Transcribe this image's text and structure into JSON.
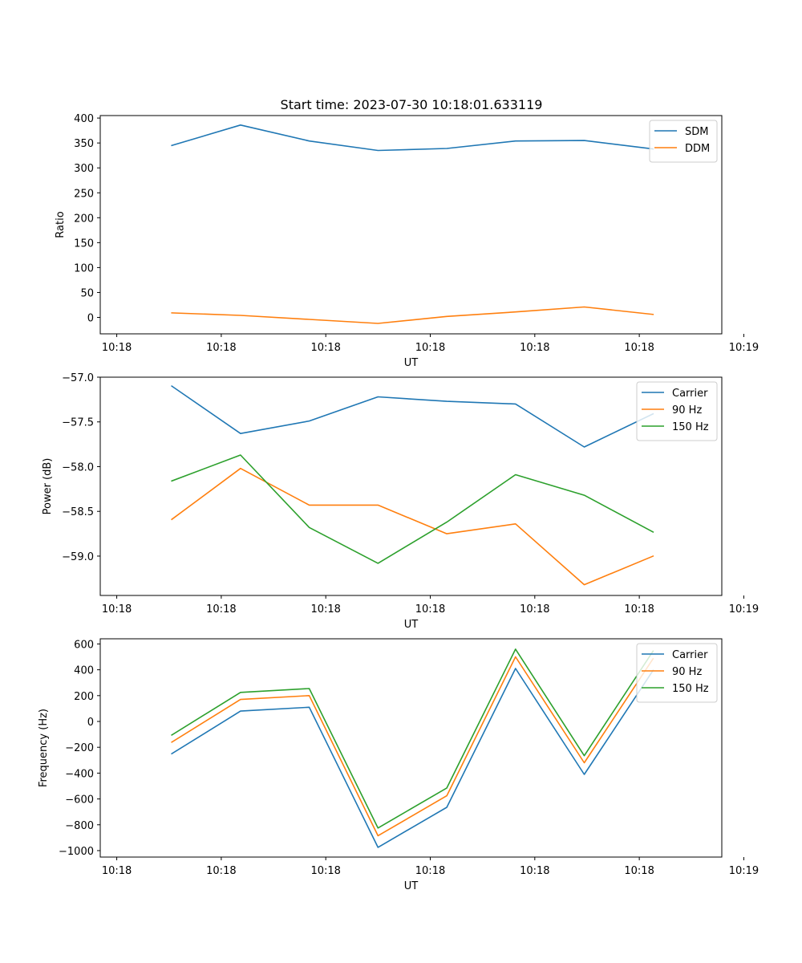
{
  "figure": {
    "title": "Start time: 2023-07-30 10:18:01.633119"
  },
  "colors": {
    "blue": "#1f77b4",
    "orange": "#ff7f0e",
    "green": "#2ca02c"
  },
  "chart_data": [
    {
      "type": "line",
      "name": "ratio",
      "title": "Start time: 2023-07-30 10:18:01.633119",
      "xlabel": "UT",
      "ylabel": "Ratio",
      "xlim": [
        -0.13,
        1.0
      ],
      "ylim": [
        -33,
        405
      ],
      "x": [
        0,
        0.125,
        0.25,
        0.375,
        0.5,
        0.625,
        0.75,
        0.875
      ],
      "xticks": [
        -0.1,
        0.09,
        0.28,
        0.47,
        0.66,
        0.85,
        1.04
      ],
      "xticklabels": [
        "10:18",
        "10:18",
        "10:18",
        "10:18",
        "10:18",
        "10:18",
        "10:19"
      ],
      "yticks": [
        0,
        50,
        100,
        150,
        200,
        250,
        300,
        350,
        400
      ],
      "yticklabels": [
        "0",
        "50",
        "100",
        "150",
        "200",
        "250",
        "300",
        "350",
        "400"
      ],
      "legend": "top-right",
      "series": [
        {
          "name": "SDM",
          "color": "#1f77b4",
          "values": [
            345,
            386,
            354,
            335,
            339,
            354,
            355,
            338
          ]
        },
        {
          "name": "DDM",
          "color": "#ff7f0e",
          "values": [
            9,
            4,
            -4,
            -12,
            2,
            11,
            21,
            6
          ]
        }
      ]
    },
    {
      "type": "line",
      "name": "power",
      "xlabel": "UT",
      "ylabel": "Power (dB)",
      "xlim": [
        -0.13,
        1.0
      ],
      "ylim": [
        -59.44,
        -57.0
      ],
      "x": [
        0,
        0.125,
        0.25,
        0.375,
        0.5,
        0.625,
        0.75,
        0.875
      ],
      "xticks": [
        -0.1,
        0.09,
        0.28,
        0.47,
        0.66,
        0.85,
        1.04
      ],
      "xticklabels": [
        "10:18",
        "10:18",
        "10:18",
        "10:18",
        "10:18",
        "10:18",
        "10:19"
      ],
      "yticks": [
        -59.0,
        -58.5,
        -58.0,
        -57.5,
        -57.0
      ],
      "yticklabels": [
        "−59.0",
        "−58.5",
        "−58.0",
        "−57.5",
        "−57.0"
      ],
      "legend": "top-right",
      "series": [
        {
          "name": "Carrier",
          "color": "#1f77b4",
          "values": [
            -57.1,
            -57.63,
            -57.49,
            -57.22,
            -57.27,
            -57.3,
            -57.78,
            -57.41
          ]
        },
        {
          "name": "90 Hz",
          "color": "#ff7f0e",
          "values": [
            -58.59,
            -58.02,
            -58.43,
            -58.43,
            -58.75,
            -58.64,
            -59.32,
            -59.0
          ]
        },
        {
          "name": "150 Hz",
          "color": "#2ca02c",
          "values": [
            -58.16,
            -57.87,
            -58.68,
            -59.08,
            -58.62,
            -58.09,
            -58.32,
            -58.73
          ]
        }
      ]
    },
    {
      "type": "line",
      "name": "frequency",
      "xlabel": "UT",
      "ylabel": "Frequency (Hz)",
      "xlim": [
        -0.13,
        1.0
      ],
      "ylim": [
        -1050,
        640
      ],
      "x": [
        0,
        0.125,
        0.25,
        0.375,
        0.5,
        0.625,
        0.75,
        0.875
      ],
      "xticks": [
        -0.1,
        0.09,
        0.28,
        0.47,
        0.66,
        0.85,
        1.04
      ],
      "xticklabels": [
        "10:18",
        "10:18",
        "10:18",
        "10:18",
        "10:18",
        "10:18",
        "10:19"
      ],
      "yticks": [
        -1000,
        -800,
        -600,
        -400,
        -200,
        0,
        200,
        400,
        600
      ],
      "yticklabels": [
        "−1000",
        "−800",
        "−600",
        "−400",
        "−200",
        "0",
        "200",
        "400",
        "600"
      ],
      "legend": "top-right",
      "series": [
        {
          "name": "Carrier",
          "color": "#1f77b4",
          "values": [
            -250,
            80,
            110,
            -975,
            -665,
            410,
            -410,
            395
          ]
        },
        {
          "name": "90 Hz",
          "color": "#ff7f0e",
          "values": [
            -160,
            170,
            200,
            -885,
            -575,
            500,
            -320,
            485
          ]
        },
        {
          "name": "150 Hz",
          "color": "#2ca02c",
          "values": [
            -105,
            225,
            255,
            -825,
            -515,
            560,
            -265,
            545
          ]
        }
      ]
    }
  ]
}
